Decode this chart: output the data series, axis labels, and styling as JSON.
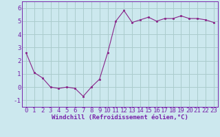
{
  "x": [
    0,
    1,
    2,
    3,
    4,
    5,
    6,
    7,
    8,
    9,
    10,
    11,
    12,
    13,
    14,
    15,
    16,
    17,
    18,
    19,
    20,
    21,
    22,
    23
  ],
  "y": [
    2.6,
    1.1,
    0.7,
    0.0,
    -0.1,
    0.0,
    -0.1,
    -0.7,
    0.0,
    0.6,
    2.6,
    5.0,
    5.8,
    4.9,
    5.1,
    5.3,
    5.0,
    5.2,
    5.2,
    5.4,
    5.2,
    5.2,
    5.1,
    4.9
  ],
  "line_color": "#882288",
  "marker_color": "#882288",
  "bg_color": "#cce8ee",
  "grid_color": "#aacccc",
  "xlabel": "Windchill (Refroidissement éolien,°C)",
  "ylim": [
    -1.5,
    6.5
  ],
  "xlim": [
    -0.5,
    23.5
  ],
  "yticks": [
    -1,
    0,
    1,
    2,
    3,
    4,
    5,
    6
  ],
  "xticks": [
    0,
    1,
    2,
    3,
    4,
    5,
    6,
    7,
    8,
    9,
    10,
    11,
    12,
    13,
    14,
    15,
    16,
    17,
    18,
    19,
    20,
    21,
    22,
    23
  ],
  "xlabel_fontsize": 6.5,
  "tick_fontsize": 6.5,
  "axis_color": "#7722aa",
  "spine_color": "#7722aa"
}
